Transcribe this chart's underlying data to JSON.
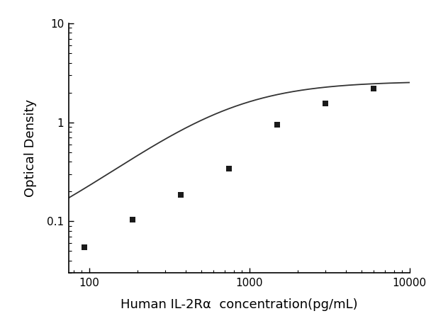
{
  "x_data": [
    93.75,
    187.5,
    375,
    750,
    1500,
    3000,
    6000
  ],
  "y_data": [
    0.055,
    0.104,
    0.185,
    0.34,
    0.94,
    1.55,
    2.2
  ],
  "x_label": "Human IL-2Rα  concentration(pg/mL)",
  "y_label": "Optical Density",
  "x_lim": [
    75,
    10000
  ],
  "y_lim": [
    0.03,
    10
  ],
  "marker": "s",
  "marker_color": "#1a1a1a",
  "marker_size": 6,
  "line_color": "#333333",
  "line_width": 1.3,
  "background_color": "#ffffff",
  "x_ticks": [
    100,
    1000,
    10000
  ],
  "y_ticks": [
    0.1,
    1,
    10
  ],
  "x_tick_labels": [
    "100",
    "1000",
    "10000"
  ],
  "y_tick_labels": [
    "0.1",
    "1",
    "10"
  ],
  "label_fontsize": 13,
  "tick_fontsize": 11
}
